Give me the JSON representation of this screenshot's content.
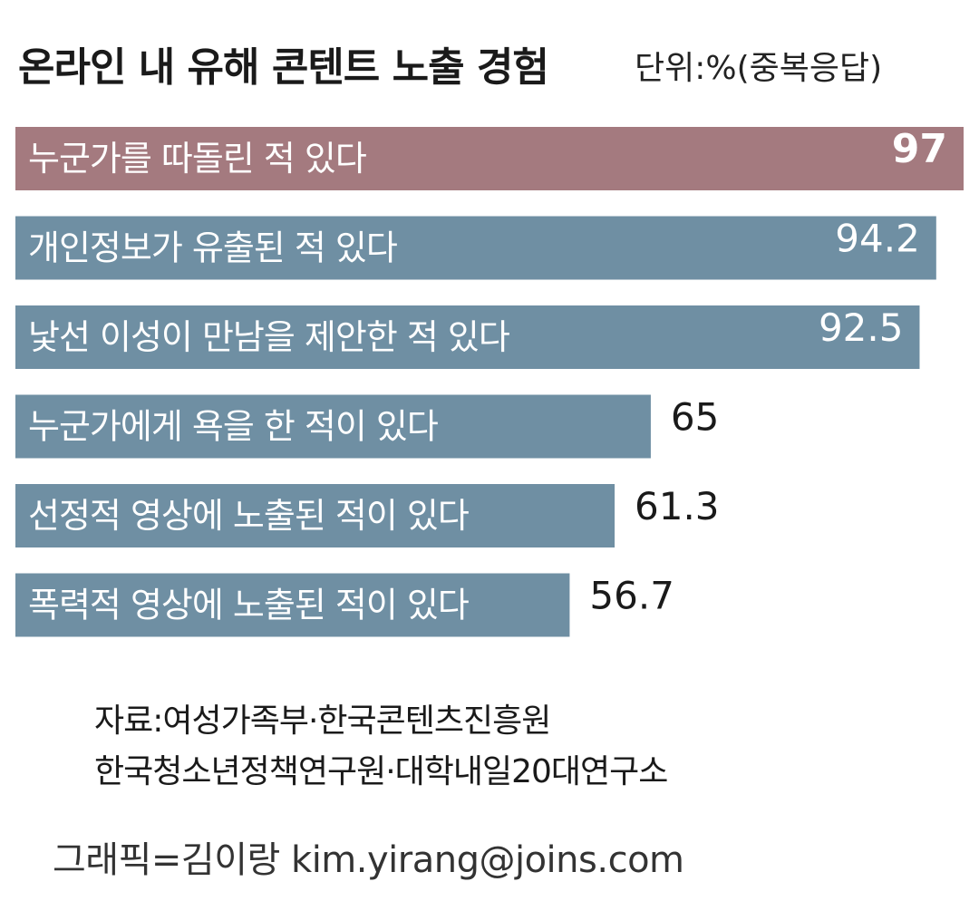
{
  "header": {
    "title": "온라인 내 유해 콘텐트 노출 경험",
    "unit": "단위:%(중복응답)"
  },
  "chart_data": {
    "type": "bar",
    "orientation": "horizontal",
    "title": "온라인 내 유해 콘텐트 노출 경험",
    "unit": "단위:%(중복응답)",
    "categories": [
      "누군가를 따돌린 적 있다",
      "개인정보가 유출된 적 있다",
      "낯선 이성이 만남을 제안한 적 있다",
      "누군가에게 욕을 한 적이 있다",
      "선정적 영상에 노출된 적이 있다",
      "폭력적 영상에 노출된 적이 있다"
    ],
    "values": [
      97,
      94.2,
      92.5,
      65,
      61.3,
      56.7
    ],
    "value_labels": [
      "97",
      "94.2",
      "92.5",
      "65",
      "61.3",
      "56.7"
    ],
    "highlight_index": 0,
    "colors": {
      "highlight": "#a47a7f",
      "default": "#6f8fa3"
    },
    "xlim": [
      0,
      97
    ]
  },
  "footer": {
    "source_line1": "자료:여성가족부·한국콘텐츠진흥원",
    "source_line2": "한국청소년정책연구원·대학내일20대연구소",
    "credit": "그래픽=김이랑 kim.yirang@joins.com"
  }
}
